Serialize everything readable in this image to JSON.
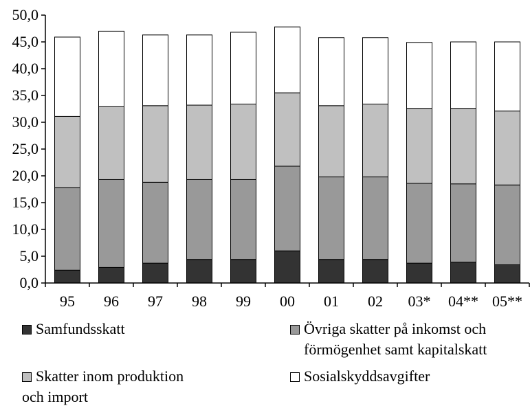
{
  "chart_data": {
    "type": "bar",
    "stacked": true,
    "categories": [
      "95",
      "96",
      "97",
      "98",
      "99",
      "00",
      "01",
      "02",
      "03*",
      "04**",
      "05**"
    ],
    "y_ticks": [
      "0,0",
      "5,0",
      "10,0",
      "15,0",
      "20,0",
      "25,0",
      "30,0",
      "35,0",
      "40,0",
      "45,0",
      "50,0"
    ],
    "ylim": [
      0,
      50
    ],
    "grid": false,
    "legend_placement": "bottom",
    "series": [
      {
        "name": "Samfundsskatt",
        "color": "#333333",
        "values": [
          2.4,
          2.9,
          3.7,
          4.4,
          4.4,
          6.0,
          4.4,
          4.4,
          3.7,
          3.9,
          3.4
        ]
      },
      {
        "name": "Övriga skatter på inkomst och förmögenhet samt kapitalskatt",
        "color": "#999999",
        "values": [
          15.4,
          16.4,
          15.1,
          14.9,
          14.9,
          15.8,
          15.4,
          15.4,
          14.9,
          14.6,
          14.9
        ]
      },
      {
        "name": "Skatter inom produktion och import",
        "color": "#c0c0c0",
        "values": [
          13.3,
          13.6,
          14.3,
          13.9,
          14.1,
          13.7,
          13.3,
          13.6,
          14.0,
          14.1,
          13.8
        ]
      },
      {
        "name": "Sosialskyddsavgifter",
        "color": "#ffffff",
        "values": [
          14.8,
          14.1,
          13.2,
          13.1,
          13.4,
          12.3,
          12.7,
          12.4,
          12.3,
          12.4,
          12.9
        ]
      }
    ]
  },
  "legend": {
    "item1": {
      "line1": "Samfundsskatt"
    },
    "item2": {
      "line1": "Övriga skatter på inkomst och",
      "line2": "förmögenhet samt kapitalskatt"
    },
    "item3": {
      "line1": "Skatter inom produktion",
      "line2": "och import"
    },
    "item4": {
      "line1": "Sosialskyddsavgifter"
    }
  }
}
